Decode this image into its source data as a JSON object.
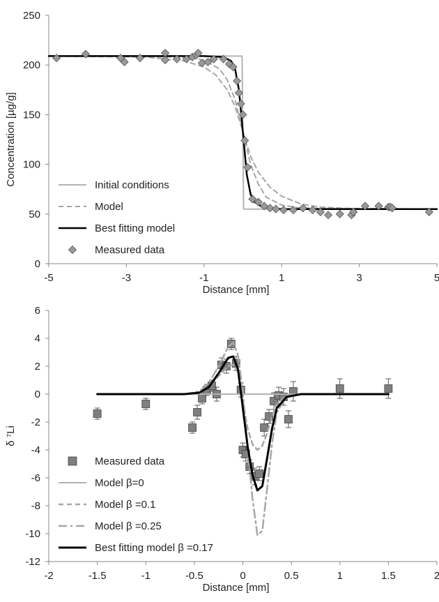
{
  "chart_data": [
    {
      "type": "line",
      "title": "",
      "xlabel": "Distance [mm]",
      "ylabel": "Concentration [µg/g]",
      "xlim": [
        -5,
        5
      ],
      "ylim": [
        0,
        250
      ],
      "xticks": [
        -5,
        -3,
        -1,
        1,
        3,
        5
      ],
      "yticks": [
        0,
        50,
        100,
        150,
        200,
        250
      ],
      "grid": false,
      "legend": "bottom-left",
      "series": [
        {
          "name": "Initial conditions",
          "kind": "line",
          "style": "solid",
          "color": "#b3b3b3",
          "width": 2,
          "x": [
            -5,
            -0.02,
            0.02,
            5
          ],
          "y": [
            209,
            209,
            55,
            55
          ]
        },
        {
          "name": "Model",
          "kind": "line",
          "style": "dashed",
          "color": "#a6a6a6",
          "width": 2,
          "x": [
            -5,
            -2.5,
            -1.5,
            -1.0,
            -0.7,
            -0.4,
            -0.2,
            0,
            0.2,
            0.4,
            0.7,
            1.0,
            1.5,
            2.0,
            2.5,
            3,
            5
          ],
          "y": [
            209,
            208,
            204,
            198,
            190,
            175,
            158,
            133,
            108,
            92,
            77,
            68,
            60,
            57,
            56,
            55,
            55
          ],
          "x2": [
            -5,
            -1.5,
            -1.0,
            -0.6,
            -0.4,
            -0.2,
            0,
            0.2,
            0.4,
            0.6,
            1.0,
            1.5,
            5
          ],
          "y2": [
            209,
            208,
            205,
            196,
            185,
            165,
            133,
            100,
            80,
            67,
            59,
            56,
            55
          ]
        },
        {
          "name": "Best fitting model",
          "kind": "line",
          "style": "solid",
          "color": "#000000",
          "width": 2.5,
          "x": [
            -5,
            -1.0,
            -0.5,
            -0.3,
            -0.2,
            -0.1,
            0,
            0.1,
            0.2,
            0.3,
            0.5,
            1.0,
            5
          ],
          "y": [
            209,
            209,
            208,
            204,
            196,
            175,
            133,
            90,
            70,
            62,
            57,
            55,
            55
          ]
        },
        {
          "name": "Measured data",
          "kind": "scatter",
          "marker": "diamond",
          "color": "#999999",
          "x": [
            -4.8,
            -4.05,
            -3.15,
            -3.05,
            -2.65,
            -2.0,
            -2.0,
            -1.7,
            -1.45,
            -1.3,
            -1.2,
            -1.15,
            -1.05,
            -0.9,
            -0.75,
            -0.5,
            -0.35,
            -0.25,
            -0.15,
            -0.1,
            -0.05,
            0,
            0.05,
            0.12,
            0.25,
            0.4,
            0.55,
            0.7,
            0.85,
            1.05,
            1.3,
            1.55,
            1.8,
            2.0,
            2.2,
            2.5,
            2.8,
            2.85,
            3.15,
            3.5,
            3.75,
            3.8,
            3.85,
            4.8
          ],
          "y": [
            207,
            211,
            207,
            203,
            207,
            212,
            205,
            206,
            206,
            208,
            210,
            212,
            202,
            203,
            206,
            206,
            201,
            198,
            184,
            172,
            161,
            150,
            124,
            97,
            65,
            62,
            58,
            56,
            55,
            54,
            54,
            56,
            54,
            52,
            49,
            50,
            49,
            52,
            58,
            58,
            57,
            57,
            56,
            52
          ]
        }
      ]
    },
    {
      "type": "line",
      "title": "",
      "xlabel": "Distance [mm]",
      "ylabel": "δ ⁷Li",
      "xlim": [
        -2,
        2
      ],
      "ylim": [
        -12,
        6
      ],
      "xticks": [
        -2,
        -1.5,
        -1,
        -0.5,
        0,
        0.5,
        1,
        1.5,
        2
      ],
      "xtick_labels": [
        "-2",
        "-1.5",
        "-1",
        "-0.5",
        "0",
        "0.5",
        "1",
        "1.5",
        "2"
      ],
      "yticks": [
        -12,
        -10,
        -8,
        -6,
        -4,
        -2,
        0,
        2,
        4,
        6
      ],
      "grid": false,
      "legend": "bottom-left",
      "series": [
        {
          "name": "Measured data",
          "kind": "scatter",
          "marker": "square",
          "color": "#7f7f7f",
          "x": [
            -1.5,
            -1.0,
            -0.52,
            -0.47,
            -0.42,
            -0.37,
            -0.32,
            -0.27,
            -0.22,
            -0.17,
            -0.12,
            -0.07,
            -0.02,
            0.0,
            0.03,
            0.07,
            0.12,
            0.17,
            0.22,
            0.27,
            0.32,
            0.37,
            0.42,
            0.47,
            0.52,
            1.0,
            1.5
          ],
          "y": [
            -1.4,
            -0.7,
            -2.4,
            -1.3,
            -0.3,
            0.3,
            0.6,
            0.0,
            2.1,
            2.0,
            3.6,
            2.2,
            0.3,
            -4.0,
            -4.3,
            -5.2,
            -5.9,
            -5.7,
            -2.4,
            -1.6,
            -0.5,
            -0.1,
            -0.2,
            -1.8,
            0.2,
            0.4,
            0.4
          ],
          "err": [
            0.4,
            0.4,
            0.4,
            0.5,
            0.4,
            0.4,
            0.4,
            0.5,
            0.5,
            0.5,
            0.4,
            0.5,
            0.5,
            0.5,
            0.5,
            0.5,
            0.6,
            0.5,
            0.6,
            0.5,
            0.6,
            0.6,
            0.6,
            0.6,
            0.7,
            0.7,
            0.7
          ]
        },
        {
          "name": "Model β=0",
          "kind": "line",
          "style": "solid",
          "color": "#b3b3b3",
          "width": 2,
          "x": [
            -1.5,
            1.5
          ],
          "y": [
            0,
            0
          ]
        },
        {
          "name": "Model β =0.1",
          "kind": "line",
          "style": "dashed",
          "color": "#a6a6a6",
          "width": 2.5,
          "x": [
            -1.5,
            -0.6,
            -0.45,
            -0.35,
            -0.25,
            -0.15,
            -0.1,
            -0.05,
            0.0,
            0.05,
            0.1,
            0.15,
            0.2,
            0.25,
            0.3,
            0.35,
            0.45,
            0.6,
            1.5
          ],
          "y": [
            0,
            0,
            0.1,
            0.5,
            1.3,
            2.0,
            2.1,
            1.6,
            -0.5,
            -2.5,
            -3.6,
            -4.0,
            -3.7,
            -2.8,
            -1.6,
            -0.7,
            -0.1,
            0,
            0
          ]
        },
        {
          "name": "Model β =0.25",
          "kind": "line",
          "style": "dashdot",
          "color": "#a6a6a6",
          "width": 2.5,
          "x": [
            -1.5,
            -0.6,
            -0.45,
            -0.35,
            -0.25,
            -0.15,
            -0.1,
            -0.05,
            0.0,
            0.05,
            0.1,
            0.15,
            0.2,
            0.25,
            0.3,
            0.35,
            0.45,
            0.6,
            1.5
          ],
          "y": [
            0,
            0,
            0.2,
            0.8,
            2.0,
            3.4,
            3.7,
            2.8,
            0.2,
            -4.0,
            -7.5,
            -10.1,
            -9.8,
            -6.8,
            -3.6,
            -1.3,
            -0.2,
            0,
            0
          ]
        },
        {
          "name": "Best fitting model β =0.17",
          "kind": "line",
          "style": "solid",
          "color": "#000000",
          "width": 3,
          "x": [
            -1.5,
            -0.6,
            -0.45,
            -0.35,
            -0.25,
            -0.15,
            -0.1,
            -0.05,
            0.0,
            0.05,
            0.1,
            0.15,
            0.2,
            0.25,
            0.3,
            0.35,
            0.45,
            0.6,
            1.5
          ],
          "y": [
            0,
            0,
            0.1,
            0.5,
            1.5,
            2.6,
            2.7,
            1.8,
            -1.0,
            -3.8,
            -5.8,
            -6.9,
            -6.6,
            -4.6,
            -2.5,
            -1.0,
            -0.2,
            0,
            0
          ]
        }
      ]
    }
  ]
}
